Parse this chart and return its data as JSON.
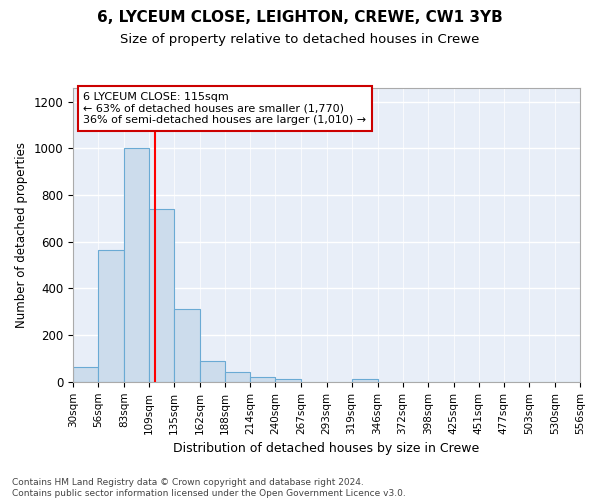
{
  "title": "6, LYCEUM CLOSE, LEIGHTON, CREWE, CW1 3YB",
  "subtitle": "Size of property relative to detached houses in Crewe",
  "xlabel": "Distribution of detached houses by size in Crewe",
  "ylabel": "Number of detached properties",
  "bar_edges": [
    30,
    56,
    83,
    109,
    135,
    162,
    188,
    214,
    240,
    267,
    293,
    319,
    346,
    372,
    398,
    425,
    451,
    477,
    503,
    530,
    556
  ],
  "bar_heights": [
    65,
    565,
    1000,
    740,
    310,
    90,
    40,
    22,
    10,
    0,
    0,
    10,
    0,
    0,
    0,
    0,
    0,
    0,
    0,
    0
  ],
  "bar_color": "#ccdcec",
  "bar_edge_color": "#6aaad4",
  "red_line_x": 115,
  "annotation_title": "6 LYCEUM CLOSE: 115sqm",
  "annotation_line1": "← 63% of detached houses are smaller (1,770)",
  "annotation_line2": "36% of semi-detached houses are larger (1,010) →",
  "annotation_box_facecolor": "#ffffff",
  "annotation_box_edgecolor": "#cc0000",
  "ylim": [
    0,
    1260
  ],
  "yticks": [
    0,
    200,
    400,
    600,
    800,
    1000,
    1200
  ],
  "ax_facecolor": "#e8eef8",
  "fig_facecolor": "#ffffff",
  "grid_color": "#ffffff",
  "footer": "Contains HM Land Registry data © Crown copyright and database right 2024.\nContains public sector information licensed under the Open Government Licence v3.0.",
  "title_fontsize": 11,
  "subtitle_fontsize": 9.5,
  "xlabel_fontsize": 9,
  "ylabel_fontsize": 8.5,
  "tick_label_fontsize": 7.5,
  "annotation_fontsize": 8,
  "footer_fontsize": 6.5
}
